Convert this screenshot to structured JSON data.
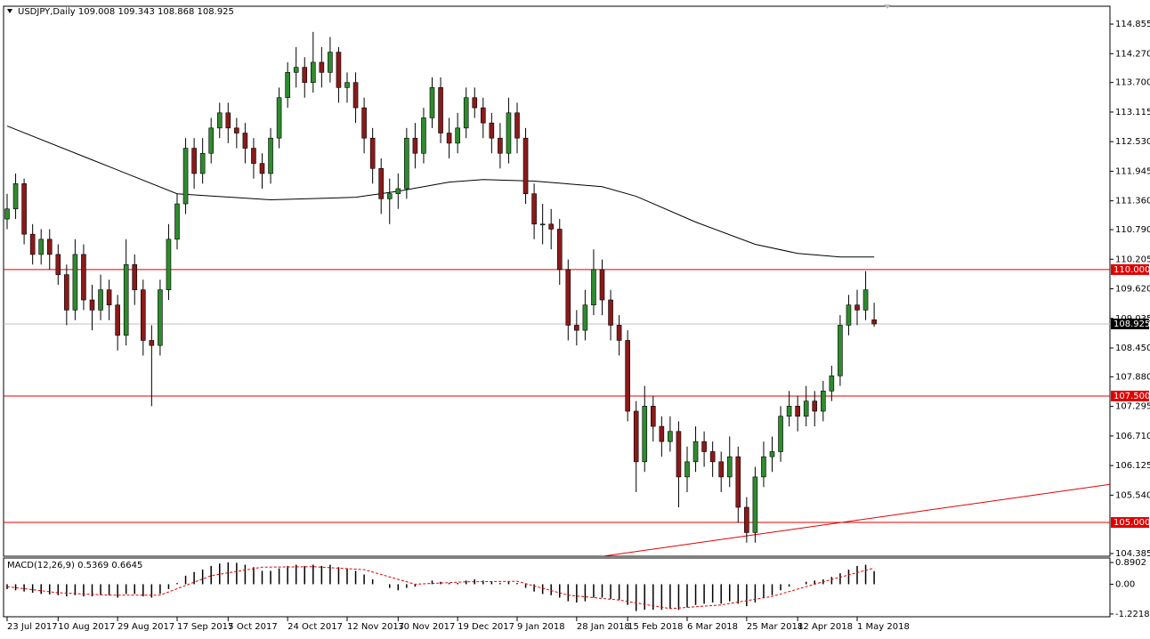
{
  "chart_data": {
    "type": "candlestick",
    "title": "USDJPY,Daily",
    "categories": [
      "23 Jul 2017",
      null,
      null,
      null,
      null,
      null,
      "10 Aug 2017",
      null,
      null,
      null,
      null,
      null,
      null,
      "29 Aug 2017",
      null,
      null,
      null,
      null,
      null,
      null,
      "17 Sep 2017",
      null,
      null,
      null,
      null,
      null,
      "5 Oct 2017",
      null,
      null,
      null,
      null,
      null,
      null,
      "24 Oct 2017",
      null,
      null,
      null,
      null,
      null,
      null,
      "12 Nov 2017",
      null,
      null,
      null,
      null,
      null,
      "30 Nov 2017",
      null,
      null,
      null,
      null,
      null,
      null,
      "19 Dec 2017",
      null,
      null,
      null,
      null,
      null,
      null,
      "9 Jan 2018",
      null,
      null,
      null,
      null,
      null,
      null,
      "28 Jan 2018",
      null,
      null,
      null,
      null,
      null,
      "15 Feb 2018",
      null,
      null,
      null,
      null,
      null,
      null,
      "6 Mar 2018",
      null,
      null,
      null,
      null,
      null,
      null,
      "25 Mar 2018",
      null,
      null,
      null,
      null,
      null,
      "12 Apr 2018",
      null,
      null,
      null,
      null,
      null,
      null,
      "1 May 2018",
      null,
      null
    ],
    "open": [
      111.0,
      111.2,
      111.7,
      110.7,
      110.3,
      110.6,
      110.3,
      109.9,
      109.2,
      110.3,
      109.4,
      109.2,
      109.6,
      109.3,
      108.7,
      110.1,
      109.6,
      108.6,
      108.5,
      109.6,
      110.6,
      111.3,
      112.4,
      111.9,
      112.3,
      112.8,
      113.1,
      112.8,
      112.7,
      112.4,
      112.1,
      111.9,
      112.6,
      113.4,
      113.9,
      114.0,
      113.7,
      114.1,
      113.9,
      114.3,
      113.6,
      113.7,
      113.2,
      112.6,
      112.0,
      111.4,
      111.5,
      111.6,
      112.6,
      112.3,
      113.0,
      113.6,
      112.7,
      112.5,
      112.8,
      113.4,
      113.2,
      112.9,
      112.6,
      112.3,
      113.1,
      112.6,
      111.5,
      110.9,
      110.9,
      110.8,
      110.0,
      108.9,
      108.8,
      109.3,
      110.0,
      109.4,
      108.9,
      108.6,
      107.2,
      106.2,
      107.3,
      106.9,
      106.6,
      106.8,
      105.9,
      106.2,
      106.6,
      106.4,
      106.2,
      105.9,
      106.3,
      105.3,
      104.8,
      105.9,
      106.3,
      106.4,
      107.1,
      107.3,
      107.1,
      107.4,
      107.2,
      107.6,
      107.9,
      108.9,
      109.3,
      109.2,
      109.008
    ],
    "high": [
      111.5,
      111.9,
      111.8,
      110.9,
      110.8,
      110.8,
      110.5,
      110.1,
      110.6,
      110.5,
      109.7,
      109.9,
      109.8,
      109.5,
      110.6,
      110.3,
      109.8,
      108.9,
      109.8,
      110.9,
      111.5,
      112.6,
      112.6,
      112.6,
      113.0,
      113.3,
      113.3,
      113.0,
      112.9,
      112.6,
      112.3,
      112.8,
      113.6,
      114.1,
      114.4,
      114.2,
      114.7,
      114.4,
      114.6,
      114.4,
      113.9,
      113.9,
      113.4,
      112.8,
      112.2,
      111.8,
      111.9,
      112.8,
      112.9,
      113.2,
      113.8,
      113.8,
      113.0,
      113.1,
      113.6,
      113.6,
      113.4,
      113.1,
      112.9,
      113.4,
      113.3,
      112.8,
      111.7,
      111.3,
      111.2,
      111.0,
      110.2,
      109.2,
      109.6,
      110.4,
      110.2,
      109.6,
      109.1,
      108.8,
      107.4,
      107.7,
      107.5,
      107.1,
      107.1,
      107.0,
      106.5,
      106.9,
      106.8,
      106.6,
      106.4,
      106.7,
      106.5,
      105.5,
      106.1,
      106.6,
      106.7,
      107.3,
      107.6,
      107.5,
      107.7,
      107.6,
      107.8,
      108.1,
      109.1,
      109.5,
      109.6,
      109.97,
      109.343
    ],
    "low": [
      110.8,
      111.0,
      110.5,
      110.1,
      110.1,
      110.0,
      109.7,
      108.9,
      109.0,
      109.2,
      108.8,
      109.0,
      109.0,
      108.4,
      108.5,
      109.3,
      108.3,
      107.3,
      108.3,
      109.4,
      110.4,
      111.1,
      111.6,
      111.7,
      112.1,
      112.6,
      112.5,
      112.4,
      112.1,
      111.8,
      111.6,
      111.7,
      112.4,
      113.2,
      113.6,
      113.4,
      113.5,
      113.6,
      113.7,
      113.3,
      113.3,
      112.9,
      112.3,
      111.7,
      111.1,
      110.9,
      111.2,
      111.4,
      112.0,
      112.1,
      112.8,
      112.5,
      112.2,
      112.3,
      112.6,
      113.0,
      112.6,
      112.3,
      112.0,
      112.1,
      112.3,
      111.3,
      110.6,
      110.5,
      110.4,
      109.7,
      108.6,
      108.5,
      108.6,
      109.1,
      109.1,
      108.6,
      108.3,
      107.0,
      105.6,
      106.0,
      106.6,
      106.3,
      106.4,
      105.3,
      105.6,
      106.0,
      106.1,
      105.9,
      105.6,
      105.7,
      105.0,
      104.6,
      104.6,
      105.7,
      106.0,
      106.2,
      106.9,
      106.8,
      106.9,
      106.9,
      107.0,
      107.4,
      107.7,
      108.7,
      108.9,
      109.0,
      108.868
    ],
    "close": [
      111.2,
      111.7,
      110.7,
      110.3,
      110.6,
      110.3,
      109.9,
      109.2,
      110.3,
      109.4,
      109.2,
      109.6,
      109.3,
      108.7,
      110.1,
      109.6,
      108.6,
      108.5,
      109.6,
      110.6,
      111.3,
      112.4,
      111.9,
      112.3,
      112.8,
      113.1,
      112.8,
      112.7,
      112.4,
      112.1,
      111.9,
      112.6,
      113.4,
      113.9,
      114.0,
      113.7,
      114.1,
      113.9,
      114.3,
      113.6,
      113.7,
      113.2,
      112.6,
      112.0,
      111.4,
      111.5,
      111.6,
      112.6,
      112.3,
      113.0,
      113.6,
      112.7,
      112.5,
      112.8,
      113.4,
      113.2,
      112.9,
      112.6,
      112.3,
      113.1,
      112.6,
      111.5,
      110.9,
      110.9,
      110.8,
      110.0,
      108.9,
      108.8,
      109.3,
      110.0,
      109.4,
      108.9,
      108.6,
      107.2,
      106.2,
      107.3,
      106.9,
      106.6,
      106.8,
      105.9,
      106.2,
      106.6,
      106.4,
      106.2,
      105.9,
      106.3,
      105.3,
      104.8,
      105.9,
      106.3,
      106.4,
      107.1,
      107.3,
      107.1,
      107.4,
      107.2,
      107.6,
      107.9,
      108.9,
      109.3,
      109.2,
      109.6,
      108.925
    ],
    "up_color": "#2e8b2e",
    "down_color": "#8b1a1a",
    "ylim": [
      104.332,
      115.208
    ],
    "yticks": [
      {
        "value": 114.855,
        "label": "114.855"
      },
      {
        "value": 114.27,
        "label": "114.270"
      },
      {
        "value": 113.7,
        "label": "113.700"
      },
      {
        "value": 113.115,
        "label": "113.115"
      },
      {
        "value": 112.53,
        "label": "112.530"
      },
      {
        "value": 111.945,
        "label": "111.945"
      },
      {
        "value": 111.36,
        "label": "111.360"
      },
      {
        "value": 110.79,
        "label": "110.790"
      },
      {
        "value": 110.205,
        "label": "110.205"
      },
      {
        "value": 109.62,
        "label": "109.620"
      },
      {
        "value": 109.035,
        "label": "109.035"
      },
      {
        "value": 108.45,
        "label": "108.450"
      },
      {
        "value": 107.88,
        "label": "107.880"
      },
      {
        "value": 107.295,
        "label": "107.295"
      },
      {
        "value": 106.71,
        "label": "106.710"
      },
      {
        "value": 106.125,
        "label": "106.125"
      },
      {
        "value": 105.54,
        "label": "105.540"
      },
      {
        "value": 104.385,
        "label": "104.385"
      }
    ],
    "moving_average": {
      "x": [
        0,
        10,
        20,
        31,
        41,
        46,
        52,
        56,
        62,
        70,
        74,
        81,
        88,
        93,
        98,
        102
      ],
      "values": [
        112.84,
        112.17,
        111.5,
        111.38,
        111.43,
        111.55,
        111.73,
        111.78,
        111.75,
        111.64,
        111.45,
        110.94,
        110.5,
        110.32,
        110.25,
        110.25
      ],
      "color": "#000000"
    },
    "trendline": {
      "x": [
        70,
        130
      ],
      "values": [
        104.33,
        105.76
      ],
      "color": "#e00000"
    },
    "levels": [
      {
        "value": 110,
        "label": "110.000"
      },
      {
        "value": 107.5,
        "label": "107.500"
      },
      {
        "value": 105,
        "label": "105.000"
      }
    ],
    "level_color": "#e00000",
    "last_price_color": "#c0c0c0",
    "macd": {
      "title": "MACD(12,26,9)",
      "values": [
        -0.2,
        -0.25,
        -0.3,
        -0.35,
        -0.4,
        -0.42,
        -0.45,
        -0.5,
        -0.45,
        -0.5,
        -0.5,
        -0.45,
        -0.45,
        -0.55,
        -0.4,
        -0.4,
        -0.5,
        -0.55,
        -0.4,
        -0.2,
        0.05,
        0.35,
        0.5,
        0.6,
        0.75,
        0.85,
        0.9,
        0.88,
        0.8,
        0.7,
        0.55,
        0.55,
        0.65,
        0.75,
        0.8,
        0.75,
        0.8,
        0.75,
        0.8,
        0.7,
        0.65,
        0.55,
        0.4,
        0.2,
        0.0,
        -0.15,
        -0.25,
        -0.15,
        -0.1,
        0.0,
        0.15,
        0.1,
        0.05,
        0.05,
        0.15,
        0.2,
        0.15,
        0.1,
        0.05,
        0.1,
        0.05,
        -0.15,
        -0.3,
        -0.4,
        -0.45,
        -0.55,
        -0.7,
        -0.75,
        -0.7,
        -0.55,
        -0.55,
        -0.6,
        -0.65,
        -0.85,
        -1.1,
        -1.05,
        -1.05,
        -1.05,
        -1.0,
        -1.05,
        -0.95,
        -0.85,
        -0.8,
        -0.75,
        -0.8,
        -0.7,
        -0.8,
        -0.9,
        -0.75,
        -0.55,
        -0.45,
        -0.25,
        -0.1,
        0.0,
        0.1,
        0.15,
        0.2,
        0.3,
        0.45,
        0.6,
        0.75,
        0.8,
        0.5369
      ],
      "signal": {
        "x": [
          0,
          6,
          12,
          18,
          24,
          30,
          36,
          42,
          48,
          54,
          60,
          66,
          72,
          78,
          84,
          90,
          96,
          102
        ],
        "values": [
          -0.1,
          -0.35,
          -0.45,
          -0.45,
          0.35,
          0.7,
          0.72,
          0.6,
          0.0,
          0.1,
          0.12,
          -0.45,
          -0.65,
          -1.0,
          -0.85,
          -0.5,
          0.1,
          0.6645
        ]
      },
      "color": "#000000",
      "signal_color": "#e00000",
      "ylim": [
        -1.335,
        1.076
      ],
      "yticks": [
        0.8902,
        {
          "value": 0,
          "label": "0.00"
        },
        -1.2218
      ]
    }
  }
}
